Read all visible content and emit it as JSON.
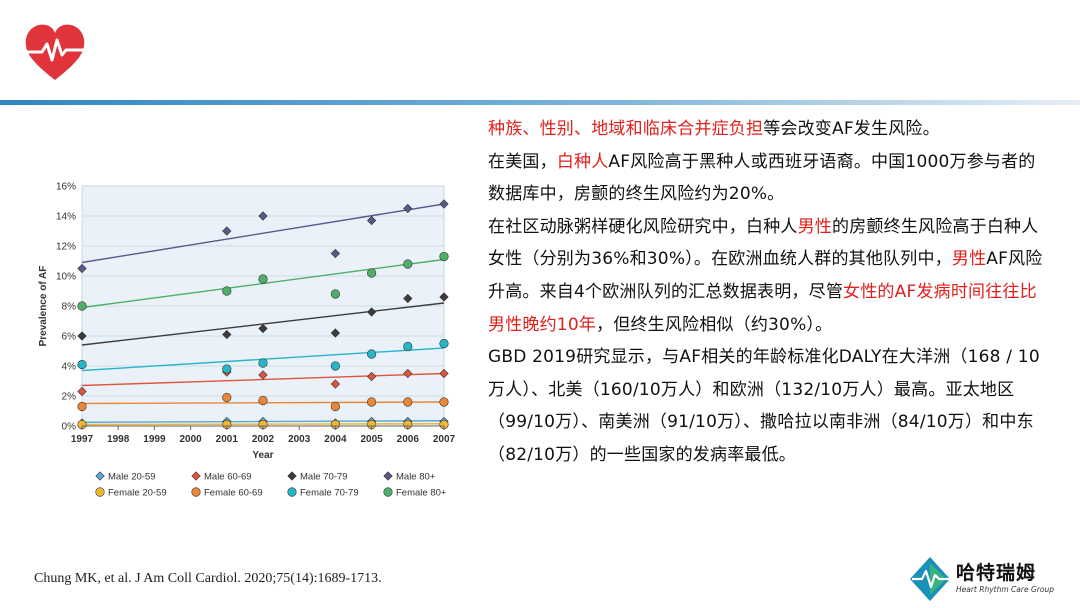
{
  "text": {
    "p1": [
      {
        "t": "种族、性别、地域和临床合并症负担",
        "red": true
      },
      {
        "t": "等会改变AF发生风险。",
        "red": false
      }
    ],
    "p2": [
      {
        "t": "在美国，",
        "red": false
      },
      {
        "t": "白种人",
        "red": true
      },
      {
        "t": "AF风险高于黑种人或西班牙语裔。中国1000万参与者的数据库中，房颤的终生风险约为20%。",
        "red": false
      }
    ],
    "p3": [
      {
        "t": "在社区动脉粥样硬化风险研究中，白种人",
        "red": false
      },
      {
        "t": "男性",
        "red": true
      },
      {
        "t": "的房颤终生风险高于白种人女性（分别为36%和30%）。在欧洲血统人群的其他队列中，",
        "red": false
      },
      {
        "t": "男性",
        "red": true
      },
      {
        "t": "AF风险升高。来自4个欧洲队列的汇总数据表明，尽管",
        "red": false
      },
      {
        "t": "女性的AF发病时间往往比男性晚约10年",
        "red": true
      },
      {
        "t": "，但终生风险相似（约30%）。",
        "red": false
      }
    ],
    "p4": [
      {
        "t": "GBD 2019研究显示，与AF相关的年龄标准化DALY在大洋洲（168 / 10万人）、北美（160/10万人）和欧洲（132/10万人）最高。亚太地区（99/10万）、南美洲（91/10万）、撒哈拉以南非洲（84/10万）和中东（82/10万）的一些国家的发病率最低。",
        "red": false
      }
    ]
  },
  "citation": "Chung MK, et al. J Am Coll Cardiol. 2020;75(14):1689-1713.",
  "brand": {
    "name": "哈特瑞姆",
    "sub": "Heart Rhythm Care Group"
  },
  "colors": {
    "red_text": "#e0201c",
    "accent_blue": "#2f86c4",
    "heart": "#e0343a"
  },
  "chart_data": {
    "type": "scatter",
    "xlabel": "Year",
    "ylabel": "Prevalence of AF",
    "xticks": [
      1997,
      1998,
      1999,
      2000,
      2001,
      2002,
      2003,
      2004,
      2005,
      2006,
      2007
    ],
    "yticks": [
      "0%",
      "2%",
      "4%",
      "6%",
      "8%",
      "10%",
      "12%",
      "14%",
      "16%"
    ],
    "xlim": [
      1997,
      2007
    ],
    "ylim": [
      0,
      16
    ],
    "legend_position": "bottom",
    "trendlines": true,
    "series": [
      {
        "name": "Male 20-59",
        "marker": "diamond",
        "color": "#5aa9d6",
        "x": [
          1997,
          2001,
          2002,
          2004,
          2005,
          2006,
          2007
        ],
        "y": [
          0.2,
          0.3,
          0.3,
          0.2,
          0.3,
          0.3,
          0.3
        ],
        "trend": [
          0.25,
          0.35
        ]
      },
      {
        "name": "Male 60-69",
        "marker": "diamond",
        "color": "#e0533c",
        "x": [
          1997,
          2001,
          2002,
          2004,
          2005,
          2006,
          2007
        ],
        "y": [
          2.3,
          3.6,
          3.4,
          2.8,
          3.3,
          3.5,
          3.5
        ],
        "trend": [
          2.7,
          3.5
        ]
      },
      {
        "name": "Male 70-79",
        "marker": "diamond",
        "color": "#3b3b3b",
        "x": [
          1997,
          2001,
          2002,
          2004,
          2005,
          2006,
          2007
        ],
        "y": [
          6.0,
          6.1,
          6.5,
          6.2,
          7.6,
          8.5,
          8.6
        ],
        "trend": [
          5.4,
          8.2
        ]
      },
      {
        "name": "Male 80+",
        "marker": "diamond",
        "color": "#5a5a8a",
        "x": [
          1997,
          2001,
          2002,
          2004,
          2005,
          2006,
          2007
        ],
        "y": [
          10.5,
          13.0,
          14.0,
          11.5,
          13.7,
          14.5,
          14.8
        ],
        "trend": [
          10.9,
          14.8
        ]
      },
      {
        "name": "Female 20-59",
        "marker": "circle",
        "color": "#f2b632",
        "x": [
          1997,
          2001,
          2002,
          2004,
          2005,
          2006,
          2007
        ],
        "y": [
          0.1,
          0.1,
          0.1,
          0.1,
          0.1,
          0.1,
          0.1
        ],
        "trend": [
          0.1,
          0.15
        ]
      },
      {
        "name": "Female 60-69",
        "marker": "circle",
        "color": "#e8863a",
        "x": [
          1997,
          2001,
          2002,
          2004,
          2005,
          2006,
          2007
        ],
        "y": [
          1.3,
          1.9,
          1.7,
          1.3,
          1.6,
          1.6,
          1.6
        ],
        "trend": [
          1.5,
          1.6
        ]
      },
      {
        "name": "Female 70-79",
        "marker": "circle",
        "color": "#26b6c8",
        "x": [
          1997,
          2001,
          2002,
          2004,
          2005,
          2006,
          2007
        ],
        "y": [
          4.1,
          3.8,
          4.2,
          4.0,
          4.8,
          5.3,
          5.5
        ],
        "trend": [
          3.7,
          5.2
        ]
      },
      {
        "name": "Female 80+",
        "marker": "circle",
        "color": "#4fae6a",
        "x": [
          1997,
          2001,
          2002,
          2004,
          2005,
          2006,
          2007
        ],
        "y": [
          8.0,
          9.0,
          9.8,
          8.8,
          10.2,
          10.8,
          11.3
        ],
        "trend": [
          7.9,
          11.1
        ]
      }
    ]
  }
}
